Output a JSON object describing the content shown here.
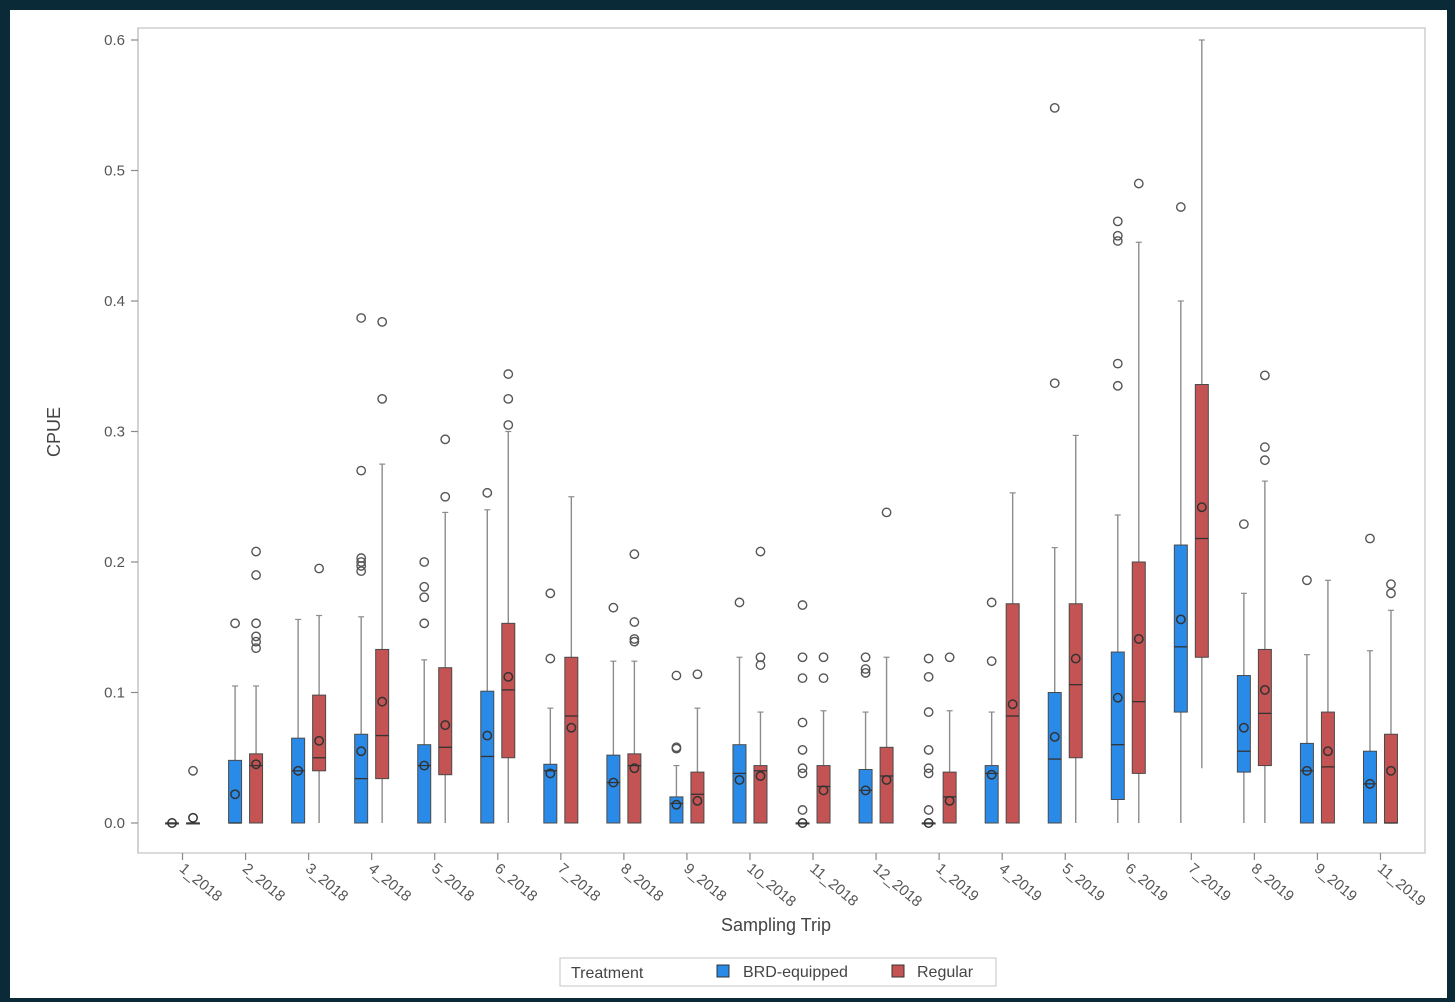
{
  "chart_data": {
    "type": "box",
    "title": "",
    "xlabel": "Sampling Trip",
    "ylabel": "CPUE",
    "ylim": [
      0,
      0.6
    ],
    "yticks": [
      "0.0",
      "0.1",
      "0.2",
      "0.3",
      "0.4",
      "0.5",
      "0.6"
    ],
    "grid": false,
    "legend_title": "Treatment",
    "legend_position": "bottom",
    "categories": [
      "1_2018",
      "2_2018",
      "3_2018",
      "4_2018",
      "5_2018",
      "6_2018",
      "7_2018",
      "8_2018",
      "9_2018",
      "10_2018",
      "11_2018",
      "12_2018",
      "1_2019",
      "4_2019",
      "5_2019",
      "6_2019",
      "7_2019",
      "8_2019",
      "9_2019",
      "11_2019"
    ],
    "series": [
      {
        "name": "BRD-equipped",
        "color": "#2a8ae8",
        "boxes": [
          {
            "min": 0,
            "q1": 0,
            "median": 0,
            "q3": 0,
            "max": 0,
            "mean": 0,
            "outliers": []
          },
          {
            "min": 0,
            "q1": 0,
            "median": 0,
            "q3": 0.048,
            "max": 0.105,
            "mean": 0.022,
            "outliers": [
              0.153
            ]
          },
          {
            "min": 0,
            "q1": 0,
            "median": 0.04,
            "q3": 0.065,
            "max": 0.156,
            "mean": 0.04,
            "outliers": []
          },
          {
            "min": 0,
            "q1": 0,
            "median": 0.034,
            "q3": 0.068,
            "max": 0.158,
            "mean": 0.055,
            "outliers": [
              0.193,
              0.197,
              0.2,
              0.203,
              0.27,
              0.387
            ]
          },
          {
            "min": 0,
            "q1": 0,
            "median": 0.044,
            "q3": 0.06,
            "max": 0.125,
            "mean": 0.044,
            "outliers": [
              0.153,
              0.173,
              0.181,
              0.2
            ]
          },
          {
            "min": 0,
            "q1": 0,
            "median": 0.051,
            "q3": 0.101,
            "max": 0.24,
            "mean": 0.067,
            "outliers": [
              0.253
            ]
          },
          {
            "min": 0,
            "q1": 0,
            "median": 0.04,
            "q3": 0.045,
            "max": 0.088,
            "mean": 0.038,
            "outliers": [
              0.126,
              0.176
            ]
          },
          {
            "min": 0,
            "q1": 0,
            "median": 0.031,
            "q3": 0.052,
            "max": 0.124,
            "mean": 0.031,
            "outliers": [
              0.165
            ]
          },
          {
            "min": 0,
            "q1": 0,
            "median": 0.015,
            "q3": 0.02,
            "max": 0.044,
            "mean": 0.014,
            "outliers": [
              0.057,
              0.058,
              0.113
            ]
          },
          {
            "min": 0,
            "q1": 0,
            "median": 0.038,
            "q3": 0.06,
            "max": 0.127,
            "mean": 0.033,
            "outliers": [
              0.169
            ]
          },
          {
            "min": 0,
            "q1": 0,
            "median": 0,
            "q3": 0,
            "max": 0,
            "mean": 0,
            "outliers": [
              0.01,
              0.038,
              0.042,
              0.056,
              0.077,
              0.111,
              0.127,
              0.167
            ]
          },
          {
            "min": 0,
            "q1": 0,
            "median": 0.025,
            "q3": 0.041,
            "max": 0.085,
            "mean": 0.025,
            "outliers": [
              0.115,
              0.118,
              0.127
            ]
          },
          {
            "min": 0,
            "q1": 0,
            "median": 0,
            "q3": 0,
            "max": 0,
            "mean": 0,
            "outliers": [
              0.01,
              0.038,
              0.042,
              0.056,
              0.085,
              0.112,
              0.126
            ]
          },
          {
            "min": 0,
            "q1": 0,
            "median": 0.038,
            "q3": 0.044,
            "max": 0.085,
            "mean": 0.037,
            "outliers": [
              0.124,
              0.169
            ]
          },
          {
            "min": 0,
            "q1": 0,
            "median": 0.049,
            "q3": 0.1,
            "max": 0.211,
            "mean": 0.066,
            "outliers": [
              0.337,
              0.548
            ]
          },
          {
            "min": 0,
            "q1": 0.018,
            "median": 0.06,
            "q3": 0.131,
            "max": 0.236,
            "mean": 0.096,
            "outliers": [
              0.335,
              0.352,
              0.446,
              0.45,
              0.461
            ]
          },
          {
            "min": 0,
            "q1": 0.085,
            "median": 0.135,
            "q3": 0.213,
            "max": 0.4,
            "mean": 0.156,
            "outliers": [
              0.472
            ]
          },
          {
            "min": 0,
            "q1": 0.039,
            "median": 0.055,
            "q3": 0.113,
            "max": 0.176,
            "mean": 0.073,
            "outliers": [
              0.229
            ]
          },
          {
            "min": 0,
            "q1": 0,
            "median": 0.04,
            "q3": 0.061,
            "max": 0.129,
            "mean": 0.04,
            "outliers": [
              0.186
            ]
          },
          {
            "min": 0,
            "q1": 0,
            "median": 0.03,
            "q3": 0.055,
            "max": 0.132,
            "mean": 0.03,
            "outliers": [
              0.218
            ]
          }
        ]
      },
      {
        "name": "Regular",
        "color": "#c45353",
        "boxes": [
          {
            "min": 0,
            "q1": 0,
            "median": 0,
            "q3": 0,
            "max": 0,
            "mean": 0.004,
            "outliers": [
              0.04
            ]
          },
          {
            "min": 0,
            "q1": 0,
            "median": 0.044,
            "q3": 0.053,
            "max": 0.105,
            "mean": 0.045,
            "outliers": [
              0.134,
              0.139,
              0.143,
              0.153,
              0.19,
              0.208
            ]
          },
          {
            "min": 0,
            "q1": 0.04,
            "median": 0.05,
            "q3": 0.098,
            "max": 0.159,
            "mean": 0.063,
            "outliers": [
              0.195
            ]
          },
          {
            "min": 0,
            "q1": 0.034,
            "median": 0.067,
            "q3": 0.133,
            "max": 0.275,
            "mean": 0.093,
            "outliers": [
              0.325,
              0.384
            ]
          },
          {
            "min": 0,
            "q1": 0.037,
            "median": 0.058,
            "q3": 0.119,
            "max": 0.238,
            "mean": 0.075,
            "outliers": [
              0.25,
              0.294
            ]
          },
          {
            "min": 0,
            "q1": 0.05,
            "median": 0.102,
            "q3": 0.153,
            "max": 0.3,
            "mean": 0.112,
            "outliers": [
              0.305,
              0.325,
              0.344
            ]
          },
          {
            "min": 0,
            "q1": 0,
            "median": 0.082,
            "q3": 0.127,
            "max": 0.25,
            "mean": 0.073,
            "outliers": []
          },
          {
            "min": 0,
            "q1": 0,
            "median": 0.044,
            "q3": 0.053,
            "max": 0.124,
            "mean": 0.042,
            "outliers": [
              0.139,
              0.141,
              0.154,
              0.206
            ]
          },
          {
            "min": 0,
            "q1": 0,
            "median": 0.022,
            "q3": 0.039,
            "max": 0.088,
            "mean": 0.017,
            "outliers": [
              0.114
            ]
          },
          {
            "min": 0,
            "q1": 0,
            "median": 0.04,
            "q3": 0.044,
            "max": 0.085,
            "mean": 0.036,
            "outliers": [
              0.121,
              0.127,
              0.208
            ]
          },
          {
            "min": 0,
            "q1": 0,
            "median": 0.028,
            "q3": 0.044,
            "max": 0.086,
            "mean": 0.025,
            "outliers": [
              0.111,
              0.127
            ]
          },
          {
            "min": 0,
            "q1": 0,
            "median": 0.036,
            "q3": 0.058,
            "max": 0.127,
            "mean": 0.033,
            "outliers": [
              0.238
            ]
          },
          {
            "min": 0,
            "q1": 0,
            "median": 0.02,
            "q3": 0.039,
            "max": 0.086,
            "mean": 0.017,
            "outliers": [
              0.127
            ]
          },
          {
            "min": 0,
            "q1": 0,
            "median": 0.082,
            "q3": 0.168,
            "max": 0.253,
            "mean": 0.091,
            "outliers": []
          },
          {
            "min": 0,
            "q1": 0.05,
            "median": 0.106,
            "q3": 0.168,
            "max": 0.297,
            "mean": 0.126,
            "outliers": []
          },
          {
            "min": 0,
            "q1": 0.038,
            "median": 0.093,
            "q3": 0.2,
            "max": 0.445,
            "mean": 0.141,
            "outliers": [
              0.49
            ]
          },
          {
            "min": 0.042,
            "q1": 0.127,
            "median": 0.218,
            "q3": 0.336,
            "max": 0.6,
            "mean": 0.242,
            "outliers": []
          },
          {
            "min": 0,
            "q1": 0.044,
            "median": 0.084,
            "q3": 0.133,
            "max": 0.262,
            "mean": 0.102,
            "outliers": [
              0.278,
              0.288,
              0.343
            ]
          },
          {
            "min": 0,
            "q1": 0,
            "median": 0.043,
            "q3": 0.085,
            "max": 0.186,
            "mean": 0.055,
            "outliers": []
          },
          {
            "min": 0,
            "q1": 0,
            "median": 0,
            "q3": 0.068,
            "max": 0.163,
            "mean": 0.04,
            "outliers": [
              0.176,
              0.183
            ]
          }
        ]
      }
    ]
  }
}
